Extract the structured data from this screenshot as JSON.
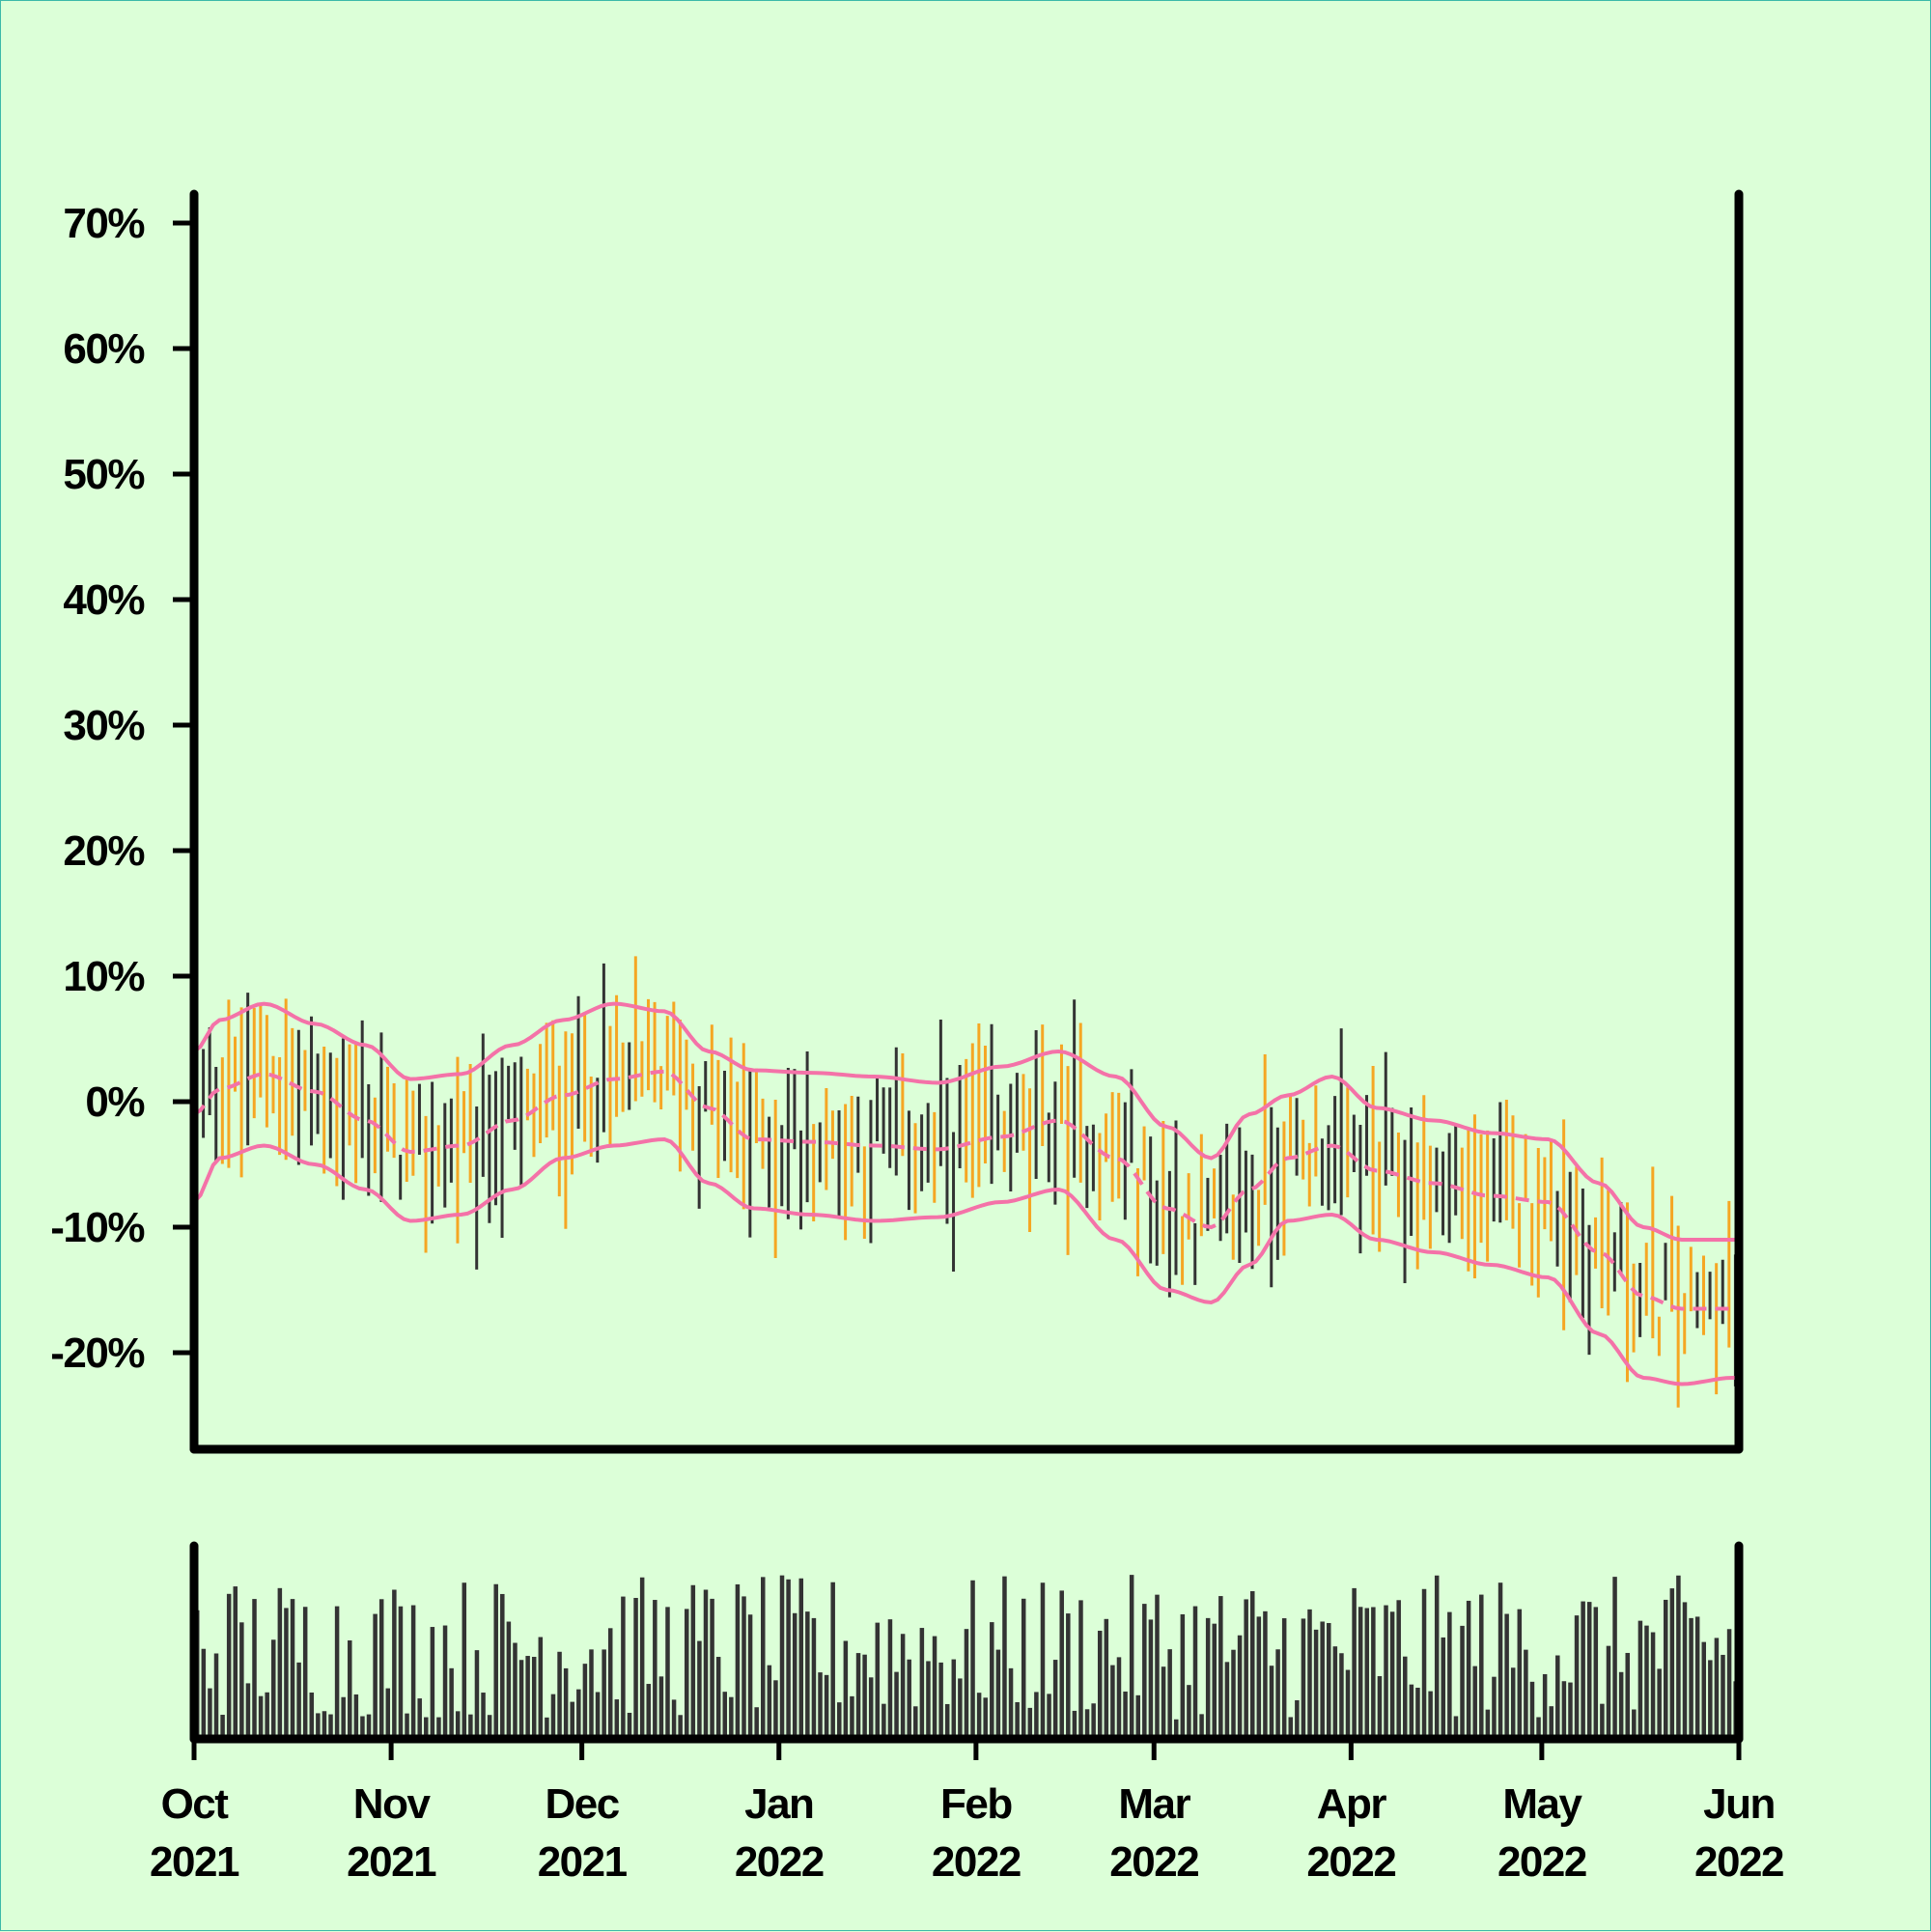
{
  "colors": {
    "background": "#dcffd8",
    "axis": "#000000",
    "bar_up": "#333333",
    "bar_down": "#f5a623",
    "band": "#f472a8",
    "volume": "#333333"
  },
  "chart_data": {
    "type": "ohlc",
    "title": "",
    "xlabel": "",
    "ylabel": "",
    "ylim": [
      -26,
      72
    ],
    "yticks": [
      -20,
      -10,
      0,
      10,
      20,
      30,
      40,
      50,
      60,
      70
    ],
    "ytick_labels": [
      "-20%",
      "-10%",
      "0%",
      "10%",
      "20%",
      "30%",
      "40%",
      "50%",
      "60%",
      "70%"
    ],
    "xlim": [
      "2021-10-01",
      "2022-06-01"
    ],
    "xticks": [
      {
        "date": "2021-10-01",
        "month": "Oct",
        "year": "2021"
      },
      {
        "date": "2021-11-01",
        "month": "Nov",
        "year": "2021"
      },
      {
        "date": "2021-12-01",
        "month": "Dec",
        "year": "2021"
      },
      {
        "date": "2022-01-01",
        "month": "Jan",
        "year": "2022"
      },
      {
        "date": "2022-02-01",
        "month": "Feb",
        "year": "2022"
      },
      {
        "date": "2022-03-01",
        "month": "Mar",
        "year": "2022"
      },
      {
        "date": "2022-04-01",
        "month": "Apr",
        "year": "2022"
      },
      {
        "date": "2022-05-01",
        "month": "May",
        "year": "2022"
      },
      {
        "date": "2022-06-01",
        "month": "Jun",
        "year": "2022"
      }
    ],
    "bands": {
      "anchor_dates": [
        "2021-10-01",
        "2021-10-05",
        "2021-10-12",
        "2021-10-20",
        "2021-10-28",
        "2021-11-04",
        "2021-11-12",
        "2021-11-20",
        "2021-11-28",
        "2021-12-06",
        "2021-12-14",
        "2021-12-21",
        "2021-12-28",
        "2022-01-06",
        "2022-01-16",
        "2022-01-26",
        "2022-02-05",
        "2022-02-14",
        "2022-02-23",
        "2022-03-03",
        "2022-03-10",
        "2022-03-16",
        "2022-03-22",
        "2022-03-29",
        "2022-04-05",
        "2022-04-14",
        "2022-04-23",
        "2022-05-02",
        "2022-05-10",
        "2022-05-17",
        "2022-05-23",
        "2022-05-31"
      ],
      "upper": [
        4.0,
        6.5,
        7.8,
        6.2,
        4.5,
        1.8,
        2.2,
        4.5,
        6.5,
        7.8,
        7.2,
        4.0,
        2.5,
        2.3,
        2.0,
        1.5,
        2.8,
        4.0,
        2.0,
        -2.0,
        -4.5,
        -1.0,
        0.5,
        2.0,
        -0.5,
        -1.5,
        -2.5,
        -3.0,
        -6.5,
        -10.0,
        -11.0,
        -11.0
      ],
      "middle": [
        -1.0,
        1.0,
        2.2,
        0.8,
        -1.5,
        -4.0,
        -3.5,
        -1.5,
        0.5,
        1.8,
        2.4,
        -0.5,
        -3.0,
        -3.2,
        -3.5,
        -3.8,
        -2.8,
        -1.5,
        -4.5,
        -8.5,
        -10.0,
        -7.0,
        -4.5,
        -3.5,
        -5.5,
        -6.5,
        -7.5,
        -8.0,
        -12.0,
        -15.5,
        -16.5,
        -16.5
      ],
      "lower": [
        -8.0,
        -4.5,
        -3.5,
        -5.0,
        -7.0,
        -9.5,
        -9.0,
        -7.0,
        -4.5,
        -3.5,
        -3.0,
        -6.5,
        -8.5,
        -9.0,
        -9.5,
        -9.2,
        -8.0,
        -7.0,
        -11.0,
        -15.0,
        -16.0,
        -13.0,
        -9.5,
        -9.0,
        -11.0,
        -12.0,
        -13.0,
        -14.0,
        -18.5,
        -22.0,
        -22.5,
        -22.0
      ]
    },
    "volume": {
      "ylim": [
        0,
        100
      ],
      "note": "bottom panel, daily bars; values in relative units"
    }
  }
}
